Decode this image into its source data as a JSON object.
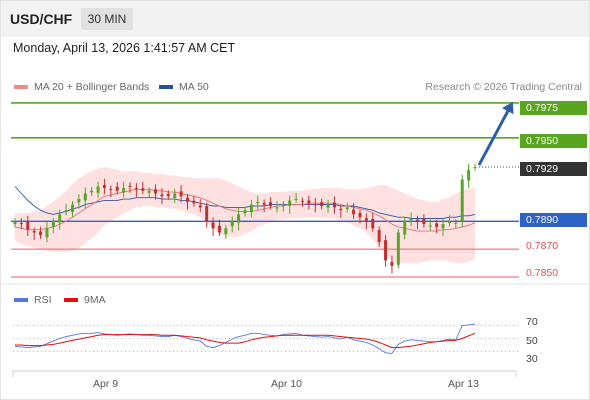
{
  "header": {
    "symbol": "USD/CHF",
    "timeframe": "30 MIN"
  },
  "timestamp": "Monday, April 13, 2026 1:41:57 AM CET",
  "legend": {
    "ma20_label": "MA 20 + Bollinger Bands",
    "ma50_label": "MA 50",
    "rsi_label": "RSI",
    "ma9_label": "9MA",
    "credit": "Research © 2026 Trading Central"
  },
  "colors": {
    "target": "#5aa51f",
    "current": "#333333",
    "pivot": "#2e62c9",
    "support": "#e86060",
    "candle_up": "#54a822",
    "candle_down": "#c03030",
    "bollinger": "#ffdcdc",
    "ma20": "#e87070",
    "ma50": "#3355aa",
    "rsi": "#5577dd",
    "rsi_ma": "#e01010",
    "arrow": "#2c5fa8"
  },
  "levels": {
    "target2": "0.7975",
    "target1": "0.7950",
    "current": "0.7929",
    "pivot": "0.7890",
    "support1": "0.7870",
    "support2": "0.7850"
  },
  "rsi_ticks": [
    "70",
    "50",
    "30"
  ],
  "x_labels": [
    "Apr 9",
    "Apr 10",
    "Apr 13"
  ],
  "chart_data": {
    "type": "candlestick",
    "ylim": [
      0.7845,
      0.798
    ],
    "rsi_ylim": [
      0,
      100
    ],
    "price": [
      0.789,
      0.7888,
      0.7884,
      0.7882,
      0.788,
      0.7885,
      0.789,
      0.7895,
      0.7898,
      0.7902,
      0.7906,
      0.791,
      0.7912,
      0.7915,
      0.7914,
      0.7913,
      0.7912,
      0.7914,
      0.7915,
      0.7913,
      0.7912,
      0.7912,
      0.791,
      0.7908,
      0.7908,
      0.791,
      0.7908,
      0.7904,
      0.7903,
      0.79,
      0.789,
      0.7885,
      0.7882,
      0.7885,
      0.789,
      0.7895,
      0.7898,
      0.7902,
      0.7904,
      0.7902,
      0.7901,
      0.79,
      0.7902,
      0.7905,
      0.7906,
      0.7904,
      0.7903,
      0.7902,
      0.7901,
      0.7902,
      0.79,
      0.7898,
      0.79,
      0.7895,
      0.7893,
      0.789,
      0.7885,
      0.7875,
      0.7862,
      0.7858,
      0.7882,
      0.789,
      0.7892,
      0.789,
      0.7888,
      0.7887,
      0.7886,
      0.7888,
      0.789,
      0.7889,
      0.792,
      0.7927,
      0.7929
    ],
    "ma50": [
      0.7915,
      0.791,
      0.7905,
      0.7901,
      0.7898,
      0.7896,
      0.7895,
      0.7896,
      0.7897,
      0.7899,
      0.79,
      0.7902,
      0.7903,
      0.7904,
      0.7905,
      0.7905,
      0.7905,
      0.7906,
      0.7906,
      0.7907,
      0.7907,
      0.7907,
      0.7907,
      0.7906,
      0.7906,
      0.7906,
      0.7905,
      0.7905,
      0.7904,
      0.7903,
      0.7902,
      0.7901,
      0.7901,
      0.79,
      0.79,
      0.79,
      0.79,
      0.7901,
      0.7901,
      0.7901,
      0.7902,
      0.7902,
      0.7902,
      0.7902,
      0.7902,
      0.7902,
      0.7902,
      0.7902,
      0.7902,
      0.7902,
      0.7902,
      0.7901,
      0.7901,
      0.7901,
      0.79,
      0.7899,
      0.7898,
      0.7896,
      0.7895,
      0.7894,
      0.7893,
      0.7893,
      0.7892,
      0.7892,
      0.7892,
      0.7892,
      0.7892,
      0.7892,
      0.7893,
      0.7893,
      0.7894,
      0.7894,
      0.7895
    ],
    "ma20": [
      0.7886,
      0.7885,
      0.7884,
      0.7884,
      0.7884,
      0.7885,
      0.7886,
      0.7888,
      0.789,
      0.7893,
      0.7896,
      0.7899,
      0.7902,
      0.7905,
      0.7908,
      0.7909,
      0.791,
      0.7911,
      0.7912,
      0.7913,
      0.7913,
      0.7913,
      0.7912,
      0.7912,
      0.7911,
      0.7911,
      0.791,
      0.7909,
      0.7908,
      0.7907,
      0.7905,
      0.7903,
      0.7901,
      0.7899,
      0.7898,
      0.7897,
      0.7897,
      0.7897,
      0.7898,
      0.7899,
      0.79,
      0.7901,
      0.7901,
      0.7902,
      0.7902,
      0.7902,
      0.7903,
      0.7903,
      0.7903,
      0.7903,
      0.7903,
      0.7902,
      0.7901,
      0.79,
      0.7899,
      0.7898,
      0.7896,
      0.7894,
      0.7891,
      0.7888,
      0.7886,
      0.7885,
      0.7884,
      0.7883,
      0.7883,
      0.7883,
      0.7883,
      0.7884,
      0.7884,
      0.7885,
      0.7886,
      0.7887,
      0.7889
    ],
    "bb_width": [
      0.001,
      0.0011,
      0.0012,
      0.0013,
      0.0014,
      0.0016,
      0.0018,
      0.002,
      0.0022,
      0.0024,
      0.0025,
      0.0025,
      0.0024,
      0.0023,
      0.0021,
      0.0019,
      0.0017,
      0.0015,
      0.0014,
      0.0013,
      0.0012,
      0.0012,
      0.0012,
      0.0012,
      0.0012,
      0.0012,
      0.0012,
      0.0013,
      0.0013,
      0.0014,
      0.0016,
      0.0018,
      0.002,
      0.002,
      0.0019,
      0.0018,
      0.0016,
      0.0014,
      0.0012,
      0.0011,
      0.0011,
      0.001,
      0.001,
      0.001,
      0.001,
      0.001,
      0.001,
      0.001,
      0.0011,
      0.0011,
      0.0011,
      0.0012,
      0.0012,
      0.0013,
      0.0014,
      0.0016,
      0.0019,
      0.0022,
      0.0025,
      0.0026,
      0.0026,
      0.0025,
      0.0024,
      0.0023,
      0.0022,
      0.0021,
      0.0021,
      0.0022,
      0.0023,
      0.0025,
      0.0026,
      0.0026,
      0.0026
    ],
    "rsi": [
      38,
      37,
      36,
      37,
      38,
      42,
      46,
      50,
      53,
      55,
      57,
      58,
      58,
      59,
      57,
      56,
      55,
      56,
      57,
      56,
      55,
      55,
      54,
      53,
      53,
      55,
      53,
      50,
      48,
      46,
      38,
      36,
      39,
      44,
      49,
      53,
      55,
      58,
      58,
      56,
      55,
      54,
      56,
      57,
      58,
      55,
      54,
      53,
      52,
      53,
      51,
      49,
      52,
      48,
      46,
      44,
      40,
      34,
      28,
      27,
      41,
      46,
      48,
      47,
      46,
      45,
      45,
      47,
      49,
      48,
      70,
      71,
      72
    ],
    "rsi_ma": [
      40,
      40,
      39,
      39,
      39,
      40,
      41,
      43,
      45,
      47,
      49,
      51,
      53,
      55,
      56,
      56,
      56,
      56,
      56,
      56,
      56,
      56,
      56,
      55,
      55,
      55,
      54,
      53,
      52,
      51,
      48,
      46,
      44,
      43,
      43,
      43,
      45,
      48,
      50,
      52,
      53,
      54,
      55,
      55,
      55,
      55,
      55,
      55,
      55,
      55,
      54,
      53,
      52,
      51,
      50,
      49,
      47,
      44,
      40,
      36,
      36,
      37,
      38,
      40,
      42,
      44,
      45,
      46,
      47,
      47,
      50,
      54,
      58
    ],
    "x_label_index": [
      10,
      33,
      57
    ]
  }
}
